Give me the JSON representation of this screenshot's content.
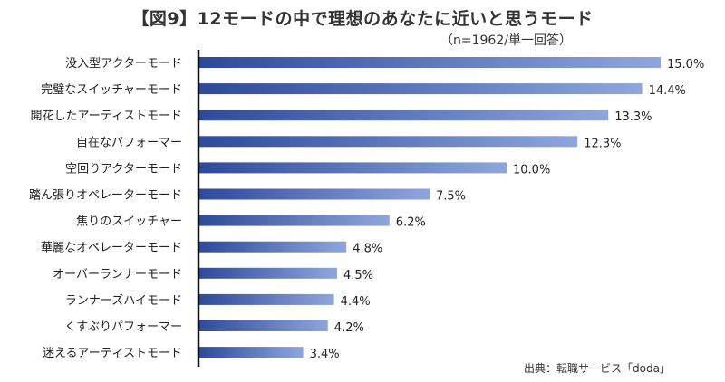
{
  "chart_data": {
    "type": "bar",
    "orientation": "horizontal",
    "title": "【図9】12モードの中で理想のあなたに近いと思うモード",
    "subtitle": "（n=1962/単一回答）",
    "source": "出典：転職サービス「doda」",
    "value_suffix": "%",
    "xlim": [
      0,
      15.0
    ],
    "categories": [
      "没入型アクターモード",
      "完璧なスイッチャーモード",
      "開花したアーティストモード",
      "自在なパフォーマー",
      "空回りアクターモード",
      "踏ん張りオペレーターモード",
      "焦りのスイッチャー",
      "華麗なオペレーターモード",
      "オーバーランナーモード",
      "ランナーズハイモード",
      "くすぶりパフォーマー",
      "迷えるアーティストモード"
    ],
    "values": [
      15.0,
      14.4,
      13.3,
      12.3,
      10.0,
      7.5,
      6.2,
      4.8,
      4.5,
      4.4,
      4.2,
      3.4
    ],
    "colors": {
      "bar_dark": "#2d4a9a",
      "bar_light": "#8fa6dc",
      "axis": "#111111"
    }
  }
}
